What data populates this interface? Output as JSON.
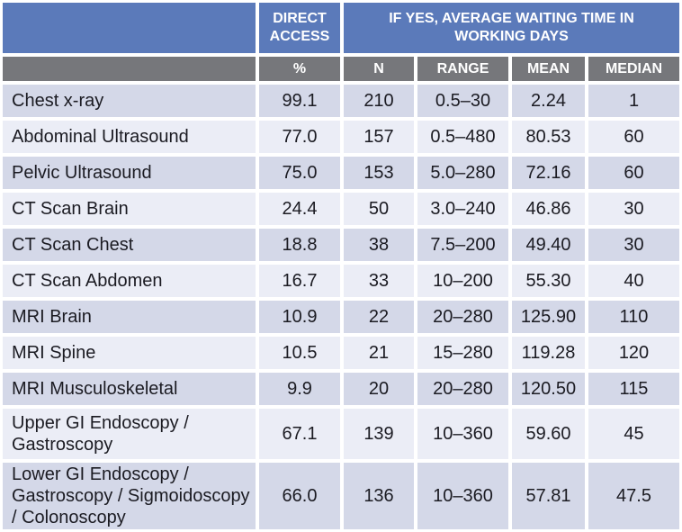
{
  "colors": {
    "header_blue": "#5b7aba",
    "header_gray": "#76777b",
    "row_dark": "#d4d8e8",
    "row_light": "#ebedf6",
    "separator": "#ffffff",
    "header_text": "#ffffff",
    "body_text": "#1b1b22"
  },
  "header": {
    "direct_access": "DIRECT ACCESS",
    "if_yes": "IF YES, AVERAGE WAITING TIME IN WORKING DAYS",
    "columns": {
      "percent": "%",
      "n": "N",
      "range": "RANGE",
      "mean": "MEAN",
      "median": "MEDIAN"
    }
  },
  "rows": [
    {
      "name": "Chest x-ray",
      "percent": "99.1",
      "n": "210",
      "range": "0.5–30",
      "mean": "2.24",
      "median": "1"
    },
    {
      "name": "Abdominal Ultrasound",
      "percent": "77.0",
      "n": "157",
      "range": "0.5–480",
      "mean": "80.53",
      "median": "60"
    },
    {
      "name": "Pelvic Ultrasound",
      "percent": "75.0",
      "n": "153",
      "range": "5.0–280",
      "mean": "72.16",
      "median": "60"
    },
    {
      "name": "CT Scan Brain",
      "percent": "24.4",
      "n": "50",
      "range": "3.0–240",
      "mean": "46.86",
      "median": "30"
    },
    {
      "name": "CT Scan Chest",
      "percent": "18.8",
      "n": "38",
      "range": "7.5–200",
      "mean": "49.40",
      "median": "30"
    },
    {
      "name": "CT Scan Abdomen",
      "percent": "16.7",
      "n": "33",
      "range": "10–200",
      "mean": "55.30",
      "median": "40"
    },
    {
      "name": "MRI Brain",
      "percent": "10.9",
      "n": "22",
      "range": "20–280",
      "mean": "125.90",
      "median": "110"
    },
    {
      "name": "MRI Spine",
      "percent": "10.5",
      "n": "21",
      "range": "15–280",
      "mean": "119.28",
      "median": "120"
    },
    {
      "name": "MRI Musculoskeletal",
      "percent": "9.9",
      "n": "20",
      "range": "20–280",
      "mean": "120.50",
      "median": "115"
    },
    {
      "name": "Upper GI Endoscopy / Gastroscopy",
      "percent": "67.1",
      "n": "139",
      "range": "10–360",
      "mean": "59.60",
      "median": "45"
    },
    {
      "name": "Lower GI Endoscopy / Gastroscopy / Sigmoidoscopy / Colonoscopy",
      "percent": "66.0",
      "n": "136",
      "range": "10–360",
      "mean": "57.81",
      "median": "47.5"
    }
  ]
}
